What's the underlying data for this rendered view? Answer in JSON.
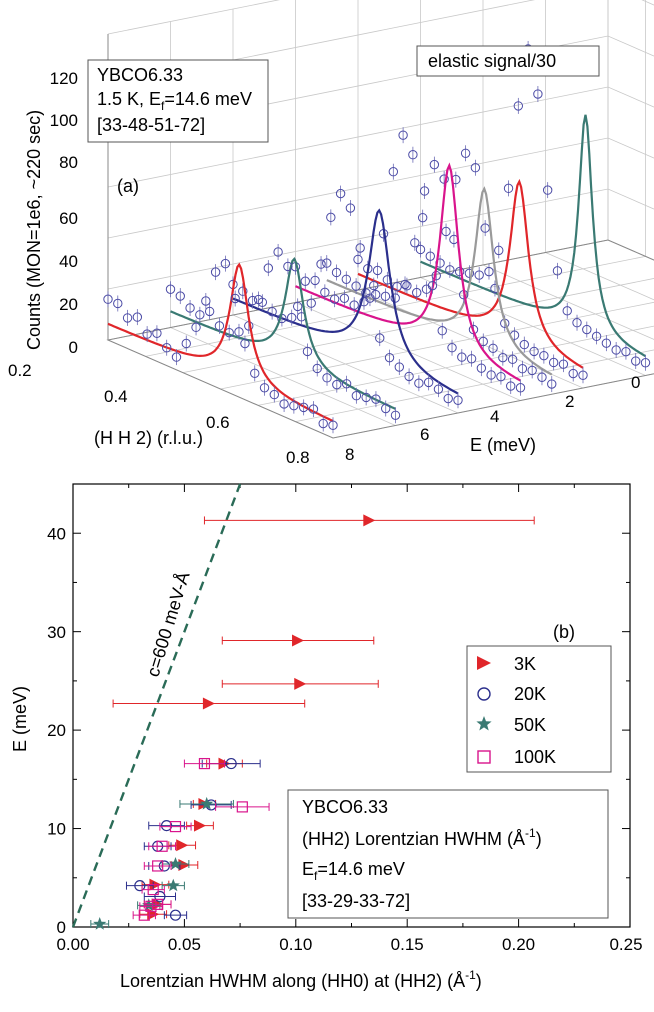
{
  "chart_data": [
    {
      "id": "a",
      "type": "line",
      "panel_label": "(a)",
      "info_lines": [
        "YBCO6.33",
        "1.5 K, E",
        "f",
        "=14.6 meV",
        "[33-48-51-72]"
      ],
      "legend_note": "elastic signal/30",
      "zlabel": "Counts (MON=1e6, ~220 sec)",
      "xlabel": "(H H 2) (r.l.u.)",
      "ylabel": "E (meV)",
      "z_ticks": [
        "0",
        "20",
        "40",
        "60",
        "80",
        "100",
        "120"
      ],
      "h_ticks": [
        "0.2",
        "0.4",
        "0.6",
        "0.8"
      ],
      "e_ticks": [
        "0",
        "2",
        "4",
        "6",
        "8"
      ],
      "zlim": [
        0,
        120
      ],
      "hlim": [
        0.2,
        0.8
      ],
      "elim": [
        0,
        8
      ],
      "series": [
        {
          "E": 8.0,
          "peak_counts": 52,
          "center_H": 0.55,
          "width": 0.03,
          "color": "#e0262a",
          "points_counts": [
            16,
            16,
            12,
            14,
            9,
            11,
            7,
            5,
            12,
            20,
            32,
            45,
            50,
            38,
            22,
            12,
            8,
            7,
            5,
            6,
            7,
            8,
            4,
            5
          ]
        },
        {
          "E": 7.0,
          "peak_counts": 48,
          "center_H": 0.53,
          "width": 0.03,
          "color": "#3a7a73",
          "points_counts": [
            15,
            14,
            11,
            10,
            13,
            9,
            8,
            10,
            14,
            26,
            40,
            48,
            44,
            30,
            14,
            9,
            7,
            6,
            8,
            5,
            6,
            7,
            5,
            4
          ]
        },
        {
          "E": 6.0,
          "peak_counts": 66,
          "center_H": 0.59,
          "width": 0.035,
          "color": "#2b2f8c",
          "points_counts": [
            12,
            11,
            9,
            10,
            8,
            7,
            9,
            11,
            18,
            35,
            55,
            66,
            62,
            48,
            30,
            16,
            10,
            8,
            6,
            5,
            7,
            6,
            4,
            5
          ]
        },
        {
          "E": 5.0,
          "peak_counts": 80,
          "center_H": 0.61,
          "width": 0.03,
          "color": "#d9148c",
          "points_counts": [
            14,
            10,
            12,
            9,
            8,
            10,
            9,
            12,
            20,
            42,
            68,
            84,
            78,
            55,
            30,
            14,
            9,
            7,
            8,
            6,
            5,
            6,
            4,
            5
          ]
        },
        {
          "E": 4.5,
          "peak_counts": 69,
          "center_H": 0.62,
          "width": 0.03,
          "color": "#9a9a9a",
          "points_counts": [
            13,
            11,
            10,
            9,
            8,
            9,
            10,
            11,
            18,
            36,
            58,
            70,
            66,
            44,
            24,
            12,
            9,
            8,
            6,
            7,
            5,
            6,
            5,
            4
          ]
        },
        {
          "E": 4.0,
          "peak_counts": 70,
          "center_H": 0.63,
          "width": 0.03,
          "color": "#e0262a",
          "points_counts": [
            12,
            10,
            11,
            9,
            8,
            10,
            9,
            12,
            19,
            38,
            60,
            72,
            68,
            46,
            24,
            12,
            9,
            7,
            6,
            6,
            5,
            6,
            4,
            5
          ]
        },
        {
          "E": 3.0,
          "peak_counts": 92,
          "center_H": 0.64,
          "width": 0.022,
          "color": "#3a7a73",
          "points_counts": [
            11,
            10,
            9,
            8,
            9,
            10,
            11,
            14,
            24,
            50,
            84,
            108,
            92,
            56,
            26,
            12,
            9,
            8,
            7,
            6,
            5,
            6,
            4,
            5
          ]
        }
      ]
    },
    {
      "id": "b",
      "type": "scatter",
      "panel_label": "(b)",
      "xlabel": "Lorentzian HWHM along (HH0) at (HH2) (Å",
      "xlabel_sup": "-1",
      "xlabel_end": ")",
      "ylabel": "E (meV)",
      "xlim": [
        0,
        0.25
      ],
      "ylim": [
        0,
        45
      ],
      "x_ticks": [
        "0.00",
        "0.05",
        "0.10",
        "0.15",
        "0.20",
        "0.25"
      ],
      "y_ticks": [
        "0",
        "10",
        "20",
        "30",
        "40"
      ],
      "dashed_line": {
        "label": "c=600 meV-Å",
        "c": 600,
        "color": "#2a6b57"
      },
      "legend": [
        "3K",
        "20K",
        "50K",
        "100K"
      ],
      "info_box": {
        "line1": "YBCO6.33",
        "line2": "(HH2) Lorentzian HWHM (Å",
        "line2_sup": "-1",
        "line2_end": ")",
        "line3a": "E",
        "line3_sub": "f",
        "line3b": "=14.6 meV",
        "line4": "[33-29-33-72]"
      },
      "series": [
        {
          "name": "3K",
          "marker": "triangle-right",
          "color": "#e0262a",
          "points": [
            {
              "x": 0.133,
              "y": 41.3,
              "xerr": 0.074
            },
            {
              "x": 0.101,
              "y": 29.1,
              "xerr": 0.034
            },
            {
              "x": 0.102,
              "y": 24.7,
              "xerr": 0.035
            },
            {
              "x": 0.061,
              "y": 22.7,
              "xerr": 0.043
            },
            {
              "x": 0.068,
              "y": 16.6,
              "xerr": 0.008
            },
            {
              "x": 0.059,
              "y": 12.5,
              "xerr": 0.005
            },
            {
              "x": 0.057,
              "y": 10.3,
              "xerr": 0.006
            },
            {
              "x": 0.049,
              "y": 8.3,
              "xerr": 0.006
            },
            {
              "x": 0.05,
              "y": 6.3,
              "xerr": 0.006
            },
            {
              "x": 0.037,
              "y": 4.3,
              "xerr": 0.006
            },
            {
              "x": 0.038,
              "y": 2.3,
              "xerr": 0.006
            },
            {
              "x": 0.036,
              "y": 1.3,
              "xerr": 0.006
            }
          ]
        },
        {
          "name": "20K",
          "marker": "circle",
          "color": "#2b2f8c",
          "points": [
            {
              "x": 0.071,
              "y": 16.6,
              "xerr": 0.013
            },
            {
              "x": 0.062,
              "y": 12.4,
              "xerr": 0.009
            },
            {
              "x": 0.042,
              "y": 10.3,
              "xerr": 0.008
            },
            {
              "x": 0.038,
              "y": 8.2,
              "xerr": 0.006
            },
            {
              "x": 0.041,
              "y": 6.2,
              "xerr": 0.007
            },
            {
              "x": 0.03,
              "y": 4.2,
              "xerr": 0.006
            },
            {
              "x": 0.039,
              "y": 3.1,
              "xerr": 0.007
            },
            {
              "x": 0.046,
              "y": 1.2,
              "xerr": 0.005
            }
          ]
        },
        {
          "name": "50K",
          "marker": "star",
          "color": "#3a7a73",
          "points": [
            {
              "x": 0.06,
              "y": 12.5,
              "xerr": 0.012
            },
            {
              "x": 0.046,
              "y": 6.4,
              "xerr": 0.006
            },
            {
              "x": 0.045,
              "y": 4.2,
              "xerr": 0.005
            },
            {
              "x": 0.034,
              "y": 2.2,
              "xerr": 0.005
            },
            {
              "x": 0.012,
              "y": 0.3,
              "xerr": 0.004
            }
          ]
        },
        {
          "name": "100K",
          "marker": "square",
          "color": "#d9148c",
          "points": [
            {
              "x": 0.059,
              "y": 16.6,
              "xerr": 0.009
            },
            {
              "x": 0.076,
              "y": 12.2,
              "xerr": 0.012
            },
            {
              "x": 0.046,
              "y": 10.2,
              "xerr": 0.007
            },
            {
              "x": 0.04,
              "y": 8.2,
              "xerr": 0.006
            },
            {
              "x": 0.038,
              "y": 6.2,
              "xerr": 0.006
            },
            {
              "x": 0.036,
              "y": 3.8,
              "xerr": 0.005
            },
            {
              "x": 0.038,
              "y": 2.3,
              "xerr": 0.006
            },
            {
              "x": 0.035,
              "y": 2.1,
              "xerr": 0.005
            },
            {
              "x": 0.032,
              "y": 1.2,
              "xerr": 0.005
            }
          ]
        }
      ]
    }
  ]
}
